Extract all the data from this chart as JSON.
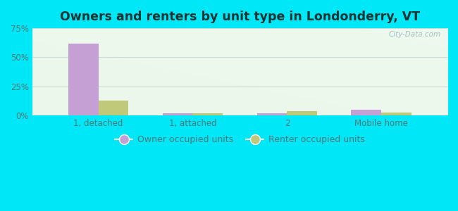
{
  "title": "Owners and renters by unit type in Londonderry, VT",
  "categories": [
    "1, detached",
    "1, attached",
    "2",
    "Mobile home"
  ],
  "owner_values": [
    62.0,
    2.0,
    2.0,
    5.0
  ],
  "renter_values": [
    13.0,
    2.0,
    3.5,
    2.5
  ],
  "owner_color": "#c4a0d4",
  "renter_color": "#c0c87a",
  "ylim": [
    0,
    75
  ],
  "yticks": [
    0,
    25,
    50,
    75
  ],
  "ytick_labels": [
    "0%",
    "25%",
    "50%",
    "75%"
  ],
  "background_outer": "#00e8f8",
  "background_inner_topleft": "#d8f0e4",
  "background_inner_topright": "#c8e8c0",
  "background_inner_bottom": "#f0fff8",
  "watermark": "City-Data.com",
  "legend_owner": "Owner occupied units",
  "legend_renter": "Renter occupied units",
  "bar_width": 0.32,
  "title_fontsize": 12.5,
  "tick_fontsize": 8.5,
  "tick_color": "#557777",
  "grid_color": "#c8ddd8",
  "watermark_color": "#99bbbb"
}
